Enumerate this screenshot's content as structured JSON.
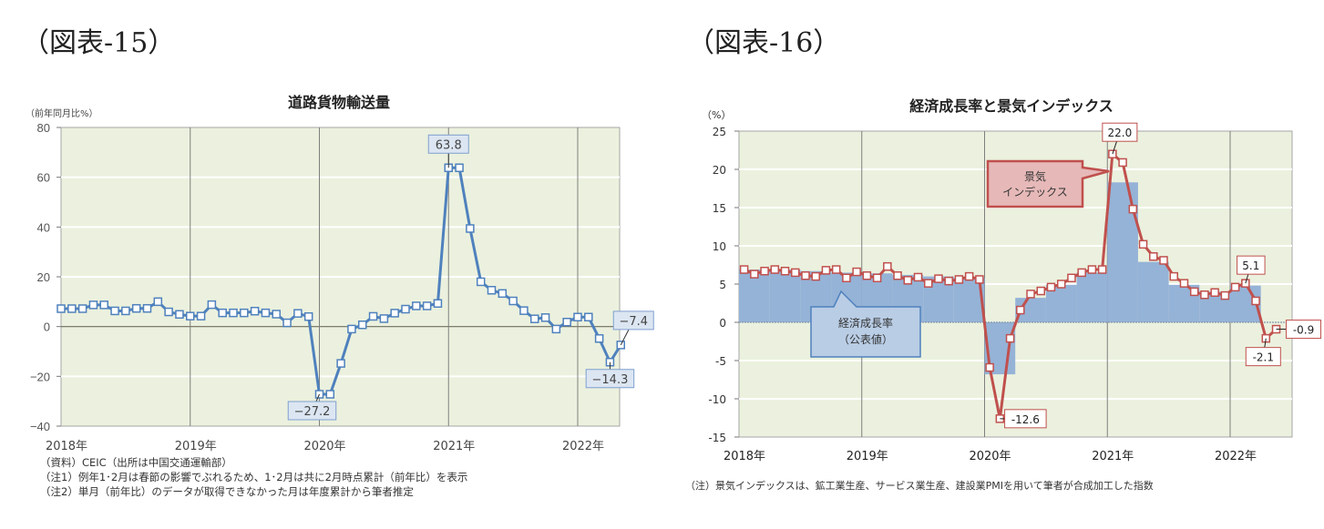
{
  "figures": [
    {
      "label": "（図表-15）"
    },
    {
      "label": "（図表-16）"
    }
  ],
  "chart_data": [
    {
      "type": "line",
      "title": "道路貨物輸送量",
      "ylabel": "（前年同月比%）",
      "xlabel": "",
      "ylim": [
        -40,
        80
      ],
      "yticks": [
        80,
        60,
        40,
        20,
        0,
        -20,
        -40
      ],
      "xtick_labels": [
        "2018年",
        "2019年",
        "2020年",
        "2021年",
        "2022年"
      ],
      "grid": true,
      "series": [
        {
          "name": "道路貨物輸送量",
          "color": "#4f81bd",
          "x_start": "2018-01",
          "values": [
            7.2,
            7.2,
            7.2,
            8.7,
            8.7,
            6.3,
            6.3,
            7.3,
            7.3,
            10.0,
            5.9,
            4.9,
            4.2,
            4.2,
            8.8,
            5.5,
            5.5,
            5.5,
            6.2,
            5.5,
            5.0,
            1.5,
            5.3,
            4.0,
            -27.2,
            -27.2,
            -14.8,
            -1.0,
            0.7,
            4.1,
            3.2,
            5.4,
            7.0,
            8.3,
            8.3,
            9.3,
            63.8,
            63.8,
            39.4,
            18.0,
            14.6,
            13.3,
            10.3,
            6.4,
            3.1,
            3.6,
            -1.0,
            1.8,
            3.8,
            3.8,
            -4.8,
            -14.3,
            -7.4
          ]
        }
      ],
      "annotations": [
        {
          "text": "63.8",
          "x": "2021-01"
        },
        {
          "text": "-27.2",
          "x": "2020-01"
        },
        {
          "text": "-14.3",
          "x": "2022-04"
        },
        {
          "text": "-7.4",
          "x": "2022-05"
        }
      ],
      "notes": [
        "（資料）CEIC（出所は中国交通運輸部）",
        "（注1）例年1･2月は春節の影響でぶれるため、1･2月は共に2月時点累計（前年比）を表示",
        "（注2）単月（前年比）のデータが取得できなかった月は年度累計から筆者推定"
      ]
    },
    {
      "type": "bar+line",
      "title": "経済成長率と景気インデックス",
      "ylabel": "（%）",
      "xlabel": "",
      "ylim": [
        -15,
        25
      ],
      "yticks": [
        25,
        20,
        15,
        10,
        5,
        0,
        -5,
        -10,
        -15
      ],
      "xtick_labels": [
        "2018年",
        "2019年",
        "2020年",
        "2021年",
        "2022年"
      ],
      "grid": true,
      "series": [
        {
          "name": "経済成長率（公表値）",
          "type": "bar",
          "color": "#95b3d7",
          "x_start": "2018Q1",
          "values": [
            6.9,
            6.9,
            6.7,
            6.5,
            6.4,
            6.2,
            6.0,
            5.8,
            -6.8,
            3.2,
            4.9,
            6.5,
            18.3,
            7.9,
            4.9,
            4.0,
            4.8
          ]
        },
        {
          "name": "景気インデックス",
          "type": "line",
          "color": "#c0504d",
          "x_start": "2018-01",
          "values": [
            6.9,
            6.3,
            6.7,
            6.9,
            6.7,
            6.5,
            6.1,
            6.0,
            6.8,
            6.9,
            5.8,
            6.6,
            6.1,
            5.8,
            7.3,
            6.1,
            5.5,
            5.9,
            5.1,
            5.7,
            5.4,
            5.6,
            6.0,
            5.6,
            -5.9,
            -12.6,
            -2.1,
            1.6,
            3.7,
            4.1,
            4.6,
            5.0,
            5.8,
            6.5,
            6.9,
            6.9,
            22.0,
            20.9,
            14.8,
            10.2,
            8.6,
            8.1,
            6.0,
            5.1,
            4.0,
            3.6,
            3.9,
            3.5,
            4.6,
            5.1,
            2.8,
            -2.1,
            -0.9
          ]
        }
      ],
      "annotations": [
        {
          "text": "22.0",
          "x": "2021-01"
        },
        {
          "text": "-12.6",
          "x": "2020-02"
        },
        {
          "text": "5.1",
          "x": "2022-02"
        },
        {
          "text": "-2.1",
          "x": "2022-04"
        },
        {
          "text": "-0.9",
          "x": "2022-05"
        }
      ],
      "callouts": [
        {
          "text_lines": [
            "景気",
            "インデックス"
          ],
          "fill": "#e6b9b8",
          "stroke": "#c0504d"
        },
        {
          "text_lines": [
            "経済成長率",
            "（公表値）"
          ],
          "fill": "#b9cde5",
          "stroke": "#4f81bd"
        }
      ],
      "notes": [
        "（注）景気インデックスは、鉱工業生産、サービス業生産、建設業PMIを用いて筆者が合成加工した指数"
      ]
    }
  ]
}
